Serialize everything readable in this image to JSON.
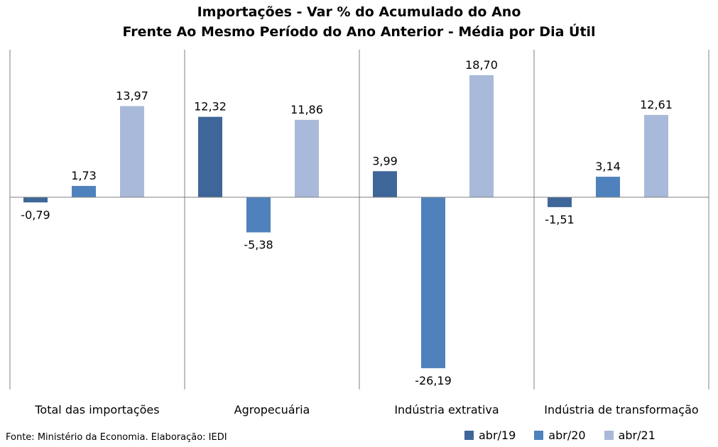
{
  "title_line1": "Importações - Var % do Acumulado do Ano",
  "title_line2": "Frente Ao Mesmo Período do Ano Anterior - Média por Dia Útil",
  "source": "Fonte: Ministério da Economia. Elaboração: IEDI",
  "chart_data": {
    "type": "bar",
    "categories": [
      "Total das importações",
      "Agropecuária",
      "Indústria extrativa",
      "Indústria de transformação"
    ],
    "series": [
      {
        "name": "abr/19",
        "values": [
          -0.79,
          12.32,
          3.99,
          -1.51
        ],
        "labels": [
          "-0,79",
          "12,32",
          "3,99",
          "-1,51"
        ],
        "color": "#3e6699"
      },
      {
        "name": "abr/20",
        "values": [
          1.73,
          -5.38,
          -26.19,
          3.14
        ],
        "labels": [
          "1,73",
          "-5,38",
          "-26,19",
          "3,14"
        ],
        "color": "#4f81bd"
      },
      {
        "name": "abr/21",
        "values": [
          13.97,
          11.86,
          18.7,
          12.61
        ],
        "labels": [
          "13,97",
          "11,86",
          "18,70",
          "12,61"
        ],
        "color": "#a9b9d9"
      }
    ],
    "ylim": [
      -29.5,
      23.5
    ],
    "grid": false,
    "legend": "bottom-right"
  }
}
